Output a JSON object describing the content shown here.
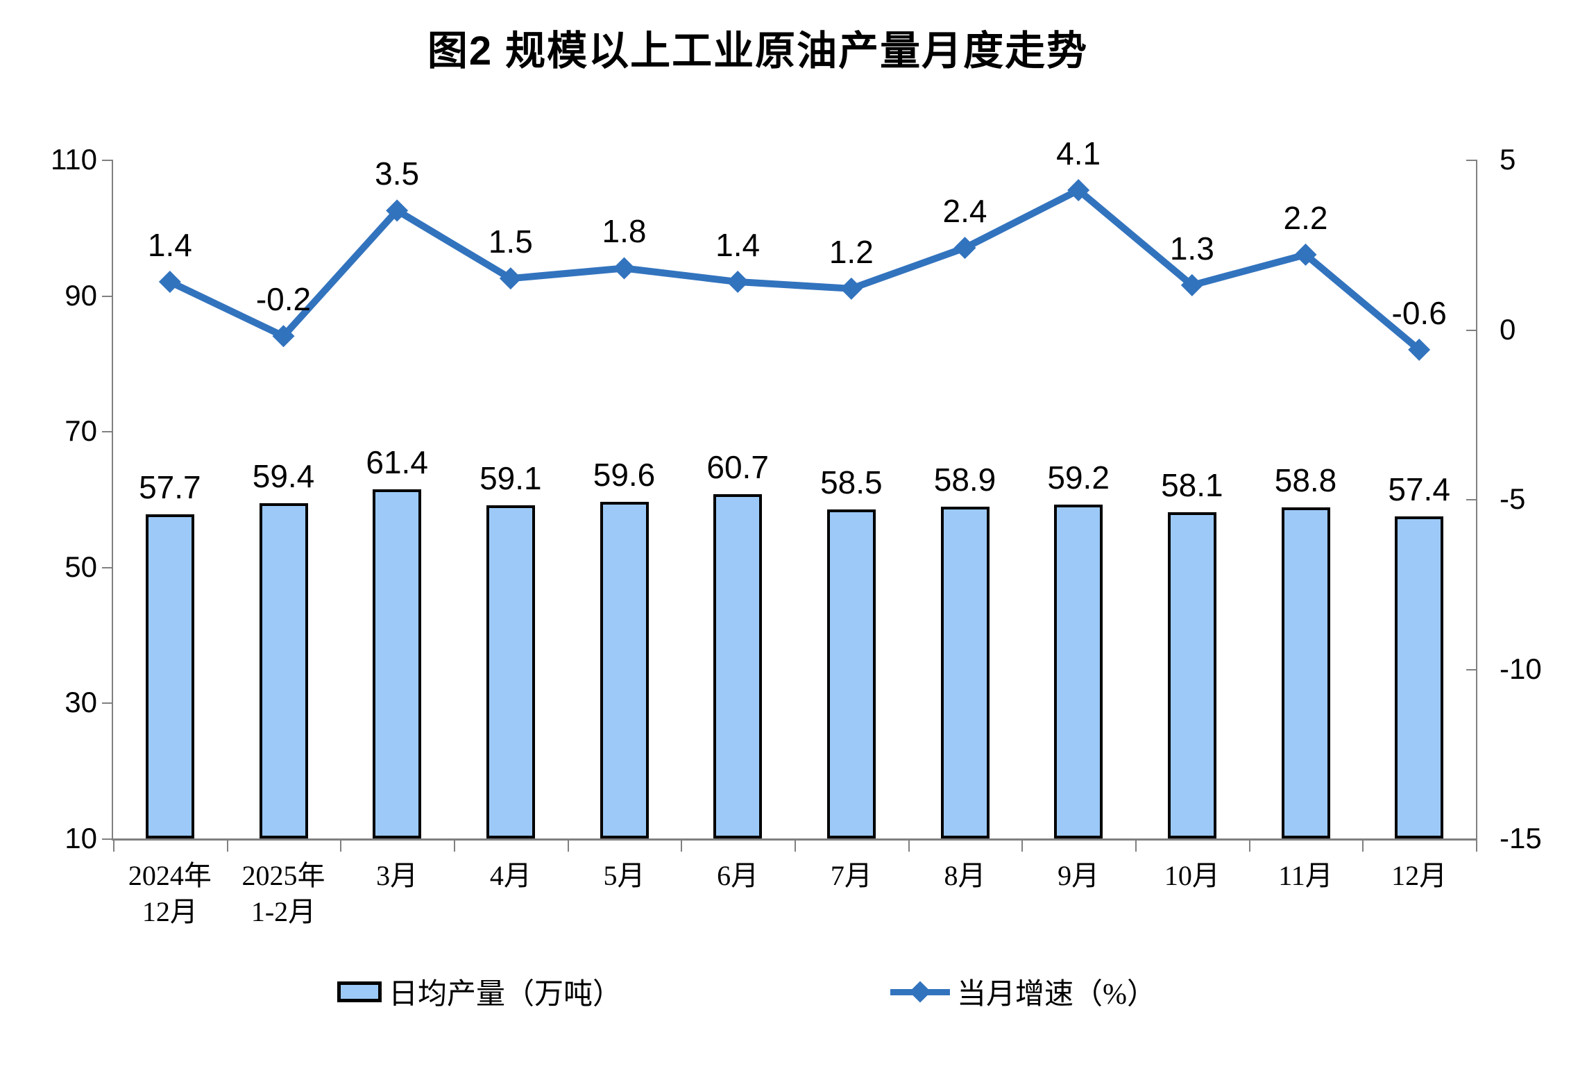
{
  "title": "图2 规模以上工业原油产量月度走势",
  "legend": {
    "bar": "日均产量（万吨）",
    "line": "当月增速（%）"
  },
  "colors": {
    "bar_fill": "#9CC9F8",
    "bar_border": "#000000",
    "line": "#3273BE",
    "axis": "#808080",
    "text": "#000000"
  },
  "chart_data": {
    "type": "combo",
    "categories": [
      [
        "2024年",
        "12月"
      ],
      [
        "2025年",
        "1-2月"
      ],
      [
        "3月"
      ],
      [
        "4月"
      ],
      [
        "5月"
      ],
      [
        "6月"
      ],
      [
        "7月"
      ],
      [
        "8月"
      ],
      [
        "9月"
      ],
      [
        "10月"
      ],
      [
        "11月"
      ],
      [
        "12月"
      ]
    ],
    "series": [
      {
        "name": "日均产量（万吨）",
        "type": "bar",
        "axis": "left",
        "values": [
          57.7,
          59.4,
          61.4,
          59.1,
          59.6,
          60.7,
          58.5,
          58.9,
          59.2,
          58.1,
          58.8,
          57.4
        ]
      },
      {
        "name": "当月增速（%）",
        "type": "line",
        "axis": "right",
        "values": [
          1.4,
          -0.2,
          3.5,
          1.5,
          1.8,
          1.4,
          1.2,
          2.4,
          4.1,
          1.3,
          2.2,
          -0.6
        ]
      }
    ],
    "left_axis": {
      "min": 10,
      "max": 110,
      "ticks": [
        110,
        90,
        70,
        50,
        30,
        10
      ]
    },
    "right_axis": {
      "min": -15,
      "max": 5,
      "ticks": [
        5,
        0,
        -5,
        -10,
        -15
      ]
    },
    "grid": false,
    "legend_position": "bottom",
    "data_labels": true
  }
}
